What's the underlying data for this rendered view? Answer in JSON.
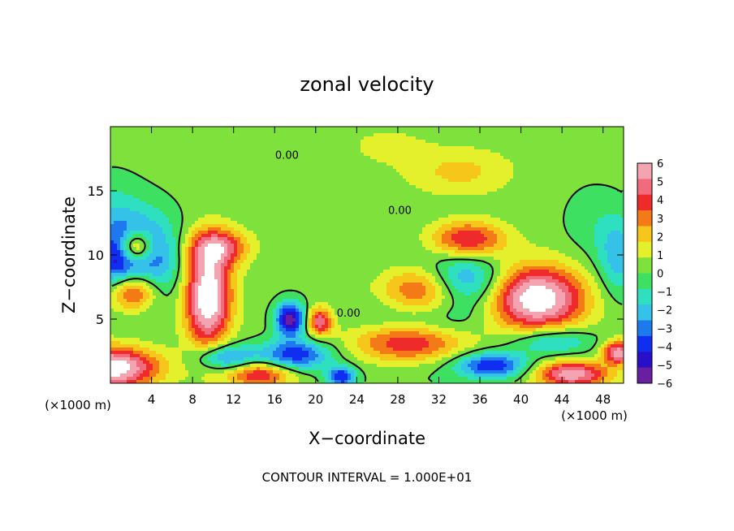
{
  "chart_data": {
    "type": "heatmap",
    "title": "zonal velocity",
    "xlabel": "X−coordinate",
    "ylabel": "Z−coordinate",
    "x_unit_left": "(×1000 m)",
    "x_unit_right": "(×1000 m)",
    "footer": "CONTOUR INTERVAL = 1.000E+01",
    "xlim": [
      0,
      50
    ],
    "ylim": [
      0,
      20
    ],
    "xticks": [
      4,
      8,
      12,
      16,
      20,
      24,
      28,
      32,
      36,
      40,
      44,
      48
    ],
    "yticks": [
      5,
      10,
      15
    ],
    "contour_labels": [
      {
        "text": "0.00",
        "x": 17.2,
        "y": 17.5
      },
      {
        "text": "0.00",
        "x": 28.2,
        "y": 13.2
      },
      {
        "text": "0.00",
        "x": 23.2,
        "y": 5.2
      }
    ],
    "colorbar": {
      "min": -6,
      "max": 6,
      "ticks": [
        6,
        5,
        4,
        3,
        2,
        1,
        0,
        -1,
        -2,
        -3,
        -4,
        -5,
        -6
      ],
      "tick_labels": [
        "6",
        "5",
        "4",
        "3",
        "2",
        "1",
        "0",
        "−1",
        "−2",
        "−3",
        "−4",
        "−5",
        "−6"
      ],
      "colors": [
        "#6a1fa3",
        "#2a0fc8",
        "#0f2ef0",
        "#1e78ee",
        "#34c2e8",
        "#2fe0c0",
        "#3ee062",
        "#7fe23c",
        "#e4f02c",
        "#f7c61a",
        "#f47a18",
        "#ee2a2a",
        "#f06c7c",
        "#f4a4b0"
      ]
    },
    "blobs": [
      {
        "x": 0,
        "y": 1.2,
        "sx": 4.5,
        "sy": 1.6,
        "v": 7.5
      },
      {
        "x": 9.5,
        "y": 6.8,
        "sx": 2.2,
        "sy": 3.8,
        "v": 7.8
      },
      {
        "x": 10.5,
        "y": 10.6,
        "sx": 2.8,
        "sy": 1.4,
        "v": 4.5
      },
      {
        "x": 2.2,
        "y": 7.2,
        "sx": 2.5,
        "sy": 1.6,
        "v": 6.0
      },
      {
        "x": 2.5,
        "y": 10.6,
        "sx": 1.6,
        "sy": 1.2,
        "v": 6.0
      },
      {
        "x": 14.5,
        "y": 0.7,
        "sx": 3.2,
        "sy": 1.0,
        "v": 4.5
      },
      {
        "x": 20.4,
        "y": 4.8,
        "sx": 1.2,
        "sy": 1.1,
        "v": 5.0
      },
      {
        "x": 29.5,
        "y": 3.2,
        "sx": 5.5,
        "sy": 1.6,
        "v": 6.5
      },
      {
        "x": 30.5,
        "y": 7.0,
        "sx": 4.6,
        "sy": 2.2,
        "v": 8.0
      },
      {
        "x": 34.8,
        "y": 11.2,
        "sx": 3.6,
        "sy": 1.4,
        "v": 4.6
      },
      {
        "x": 41.5,
        "y": 6.6,
        "sx": 4.6,
        "sy": 2.5,
        "v": 7.5
      },
      {
        "x": 45,
        "y": 0.7,
        "sx": 3.5,
        "sy": 1.0,
        "v": 6.0
      },
      {
        "x": 49.5,
        "y": 2.4,
        "sx": 1.5,
        "sy": 0.9,
        "v": 6.0
      },
      {
        "x": 34,
        "y": 16.5,
        "sx": 5.0,
        "sy": 1.8,
        "v": 1.8
      },
      {
        "x": 27,
        "y": 18.5,
        "sx": 4.0,
        "sy": 1.5,
        "v": 0.9
      },
      {
        "x": 17.5,
        "y": 5.0,
        "sx": 1.4,
        "sy": 1.3,
        "v": -6.5
      },
      {
        "x": 3.3,
        "y": 9.6,
        "sx": 3.4,
        "sy": 3.5,
        "v": -4.6
      },
      {
        "x": 0,
        "y": 12,
        "sx": 3.0,
        "sy": 3.6,
        "v": -2.0
      },
      {
        "x": 0.5,
        "y": 9.2,
        "sx": 1.8,
        "sy": 2.2,
        "v": -2.5
      },
      {
        "x": 18.0,
        "y": 2.2,
        "sx": 3.5,
        "sy": 1.2,
        "v": -4.8
      },
      {
        "x": 22.5,
        "y": 0.5,
        "sx": 1.4,
        "sy": 0.8,
        "v": -5.0
      },
      {
        "x": 11.2,
        "y": 2.0,
        "sx": 2.8,
        "sy": 1.0,
        "v": -4.0
      },
      {
        "x": 30.5,
        "y": 5.7,
        "sx": 5.5,
        "sy": 3.6,
        "v": -5.0
      },
      {
        "x": 34.5,
        "y": 7.9,
        "sx": 3.8,
        "sy": 2.0,
        "v": -4.0
      },
      {
        "x": 37.2,
        "y": 1.4,
        "sx": 3.4,
        "sy": 1.0,
        "v": -5.0
      },
      {
        "x": 43,
        "y": 3.3,
        "sx": 4.0,
        "sy": 1.1,
        "v": -3.0
      },
      {
        "x": 49.5,
        "y": 9.8,
        "sx": 2.0,
        "sy": 3.0,
        "v": -2.8
      },
      {
        "x": 47,
        "y": 12.5,
        "sx": 3.0,
        "sy": 3.0,
        "v": -0.9
      }
    ]
  }
}
